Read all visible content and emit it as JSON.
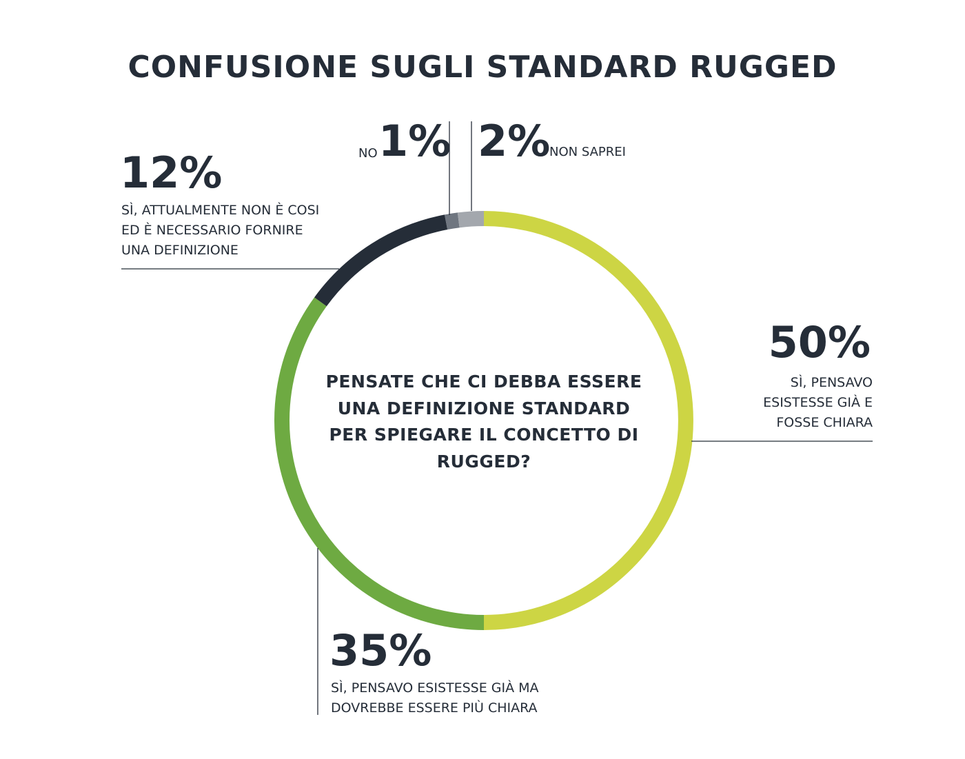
{
  "title": "CONFUSIONE SUGLI STANDARD RUGGED",
  "center_question": "PENSATE CHE CI DEBBA ESSERE UNA DEFINIZIONE STANDARD PER SPIEGARE IL CONCETTO DI RUGGED?",
  "labels": {
    "yes_clear_pct": "50%",
    "yes_clear_desc": "SÌ, PENSAVO ESISTESSE GIÀ E FOSSE CHIARA",
    "yes_unclear_pct": "35%",
    "yes_unclear_desc": "SÌ, PENSAVO ESISTESSE GIÀ MA DOVREBBE ESSERE PIÙ CHIARA",
    "yes_needed_pct": "12%",
    "yes_needed_desc": "SÌ, ATTUALMENTE NON È COSI ED È NECESSARIO FORNIRE UNA DEFINIZIONE",
    "no_pct": "1%",
    "no_desc": "NO",
    "dontknow_pct": "2%",
    "dontknow_desc": "NON SAPREI"
  },
  "chart_data": {
    "type": "pie",
    "title": "CONFUSIONE SUGLI STANDARD RUGGED",
    "categories": [
      "SÌ, PENSAVO ESISTESSE GIÀ E FOSSE CHIARA",
      "SÌ, PENSAVO ESISTESSE GIÀ MA DOVREBBE ESSERE PIÙ CHIARA",
      "SÌ, ATTUALMENTE NON È COSI ED È NECESSARIO FORNIRE UNA DEFINIZIONE",
      "NO",
      "NON SAPREI"
    ],
    "values": [
      50,
      35,
      12,
      1,
      2
    ],
    "colors": [
      "#cdd544",
      "#6eaa42",
      "#252d38",
      "#6f7680",
      "#a3a7ad"
    ],
    "donut": true
  }
}
